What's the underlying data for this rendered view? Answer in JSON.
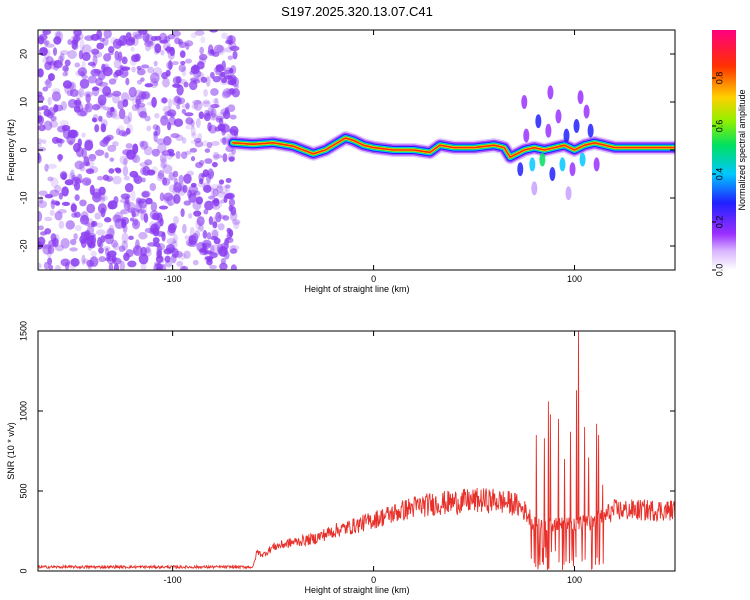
{
  "title": "S197.2025.320.13.07.C41",
  "colors": {
    "axis": "#000000",
    "snr_line": "#e8302a",
    "noise": "#8a3cf0",
    "colormap": [
      "#ffffff",
      "#9b30ff",
      "#2020ff",
      "#00c8ff",
      "#00e060",
      "#90f000",
      "#ffd000",
      "#ff3000",
      "#ff0080"
    ]
  },
  "chart_data": [
    {
      "type": "heatmap",
      "name": "spectrogram",
      "xlabel": "Height of straight line (km)",
      "ylabel": "Frequency (Hz)",
      "xlim": [
        -167,
        150
      ],
      "ylim": [
        -25,
        25
      ],
      "xticks": [
        -100,
        0,
        100
      ],
      "xtick_labels": [
        "-100",
        "0",
        "100"
      ],
      "yticks": [
        20,
        10,
        0,
        -10,
        -20
      ],
      "ytick_labels": [
        "20",
        "10",
        "0",
        "-10",
        "-20"
      ],
      "noise_region": [
        -167,
        -68
      ],
      "ridge_start": -70,
      "ridge": {
        "x": [
          -70,
          -60,
          -50,
          -40,
          -30,
          -24,
          -18,
          -14,
          -10,
          -5,
          0,
          10,
          20,
          28,
          33,
          40,
          50,
          60,
          65,
          68,
          75,
          80,
          85,
          90,
          95,
          100,
          105,
          110,
          120,
          130,
          140,
          150
        ],
        "y": [
          1.5,
          1.2,
          1.5,
          0.8,
          -0.8,
          0,
          1.5,
          2.5,
          2,
          1,
          0.5,
          0,
          0,
          -0.5,
          1,
          0.5,
          0.5,
          1,
          0.5,
          -1.5,
          0,
          0.5,
          0,
          0.5,
          1,
          0,
          1,
          1.5,
          0.5,
          0.5,
          0.5,
          0.5
        ]
      },
      "colorbar": {
        "label": "Normalized spectral amplitude",
        "ticks": [
          0.0,
          0.2,
          0.4,
          0.6,
          0.8
        ],
        "tick_labels": [
          "0.0",
          "0.2",
          "0.4",
          "0.6",
          "0.8"
        ],
        "range": [
          0,
          1
        ]
      }
    },
    {
      "type": "line",
      "name": "snr",
      "xlabel": "Height of straight line (km)",
      "ylabel": "SNR (10 * v/v)",
      "xlim": [
        -167,
        150
      ],
      "ylim": [
        0,
        1500
      ],
      "xticks": [
        -100,
        0,
        100
      ],
      "xtick_labels": [
        "-100",
        "0",
        "100"
      ],
      "yticks": [
        0,
        500,
        1000,
        1500
      ],
      "ytick_labels": [
        "0",
        "500",
        "1000",
        "1500"
      ],
      "envelope": {
        "x": [
          -167,
          -60,
          -58,
          -55,
          -50,
          -40,
          -30,
          -20,
          -10,
          0,
          10,
          20,
          30,
          40,
          50,
          60,
          70,
          75,
          80,
          90,
          100,
          110,
          115,
          120,
          150
        ],
        "y": [
          25,
          25,
          120,
          100,
          150,
          180,
          200,
          250,
          280,
          320,
          360,
          400,
          420,
          430,
          440,
          440,
          420,
          380,
          300,
          280,
          300,
          300,
          350,
          380,
          380
        ]
      },
      "spikes": {
        "x": [
          81,
          85,
          87,
          88,
          92,
          95,
          98,
          101,
          102,
          105,
          107,
          111,
          112,
          114
        ],
        "y": [
          850,
          830,
          1060,
          980,
          950,
          700,
          870,
          1130,
          1500,
          900,
          710,
          920,
          850,
          540
        ]
      }
    }
  ]
}
